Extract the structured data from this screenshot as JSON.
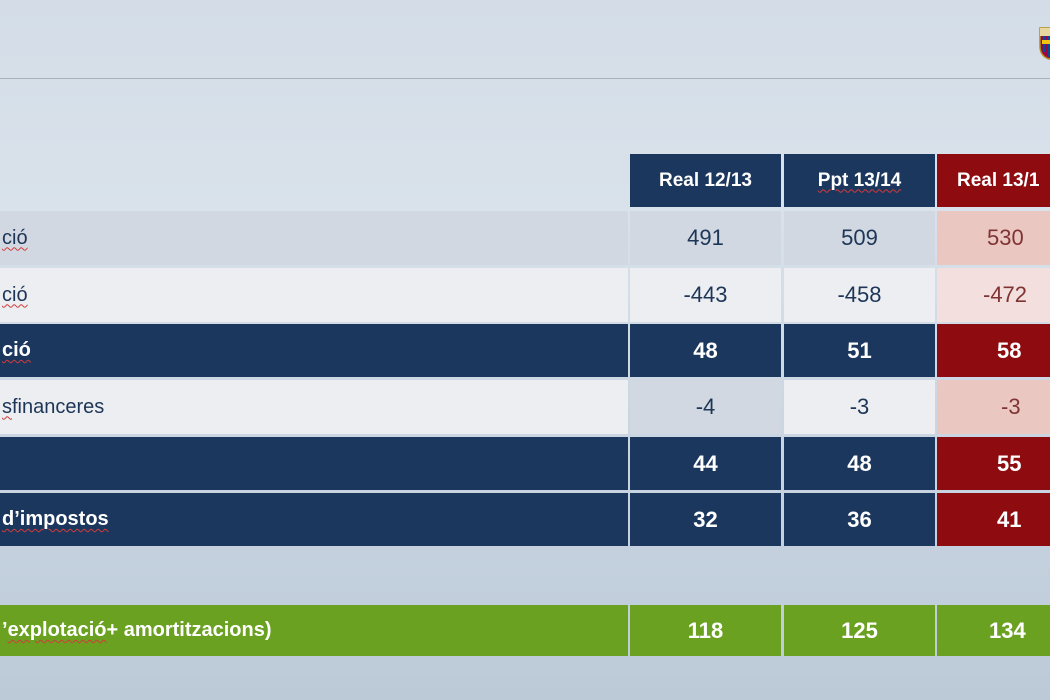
{
  "columns": [
    "Real 12/13",
    "Ppt 13/14",
    "Real 13/1"
  ],
  "rows": [
    {
      "label_pre": "",
      "label_wavy": "ció",
      "label_post": "",
      "values": [
        "491",
        "509",
        "530"
      ]
    },
    {
      "label_pre": "",
      "label_wavy": "ció",
      "label_post": "",
      "values": [
        "-443",
        "-458",
        "-472"
      ]
    },
    {
      "label_pre": "",
      "label_wavy": "ció",
      "label_post": "",
      "values": [
        "48",
        "51",
        "58"
      ]
    },
    {
      "label_pre": "",
      "label_wavy": "s",
      "label_post": " financeres",
      "values": [
        "-4",
        "-3",
        "-3"
      ]
    },
    {
      "label_pre": "",
      "label_wavy": "",
      "label_post": "",
      "values": [
        "44",
        "48",
        "55"
      ]
    },
    {
      "label_pre": "",
      "label_wavy": "d’impostos",
      "label_post": "",
      "values": [
        "32",
        "36",
        "41"
      ]
    }
  ],
  "summary": {
    "label_pre": "’",
    "label_wavy": "explotació",
    "label_post": " + amortitzacions)",
    "values": [
      "118",
      "125",
      "134"
    ]
  },
  "colors": {
    "navy": "#1c375e",
    "maroon": "#8e0b0f",
    "green": "#6aa121"
  },
  "icons": {
    "logo": "club-crest-logo"
  }
}
